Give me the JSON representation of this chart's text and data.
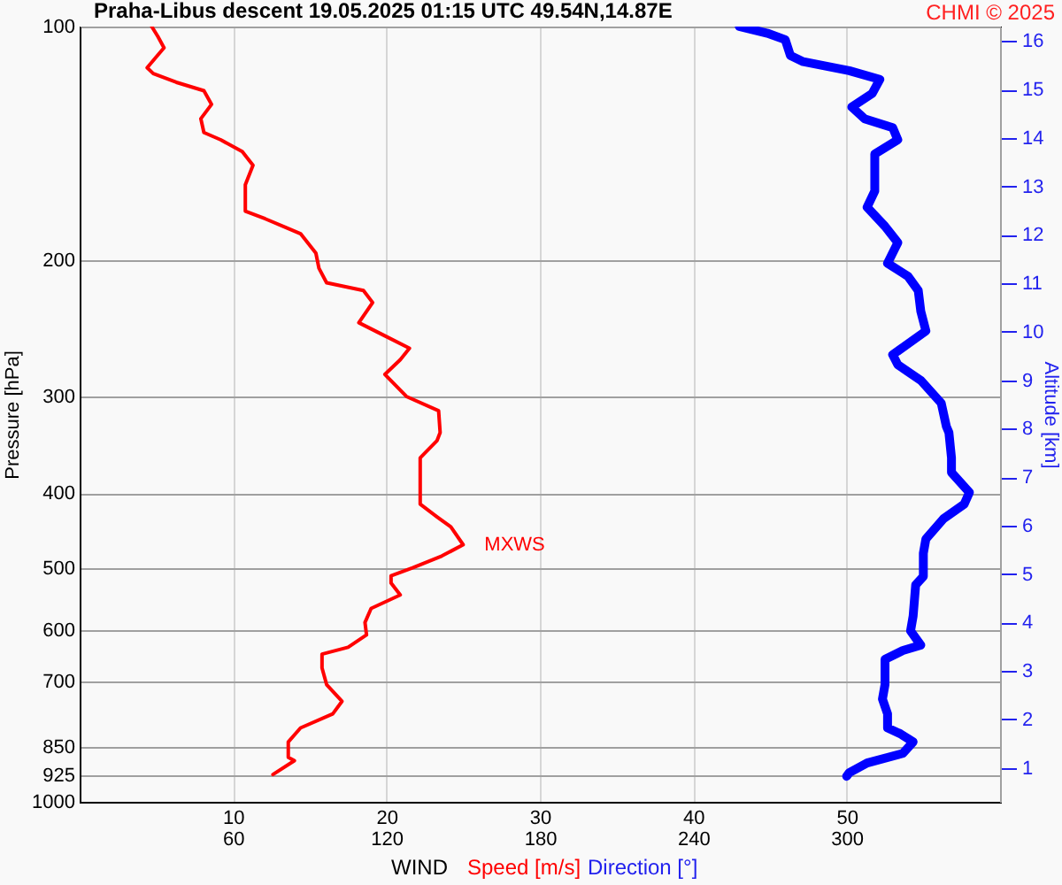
{
  "chart_data": {
    "type": "line",
    "orientation": "horizontal",
    "title": "Praha-Libus   descent   19.05.2025 01:15 UTC  49.54N,14.87E",
    "xlabel": "WIND",
    "ylabel": "Pressure [hPa]",
    "y2label": "Altitude [km]",
    "log": "y",
    "grid": true,
    "xlim": [
      0,
      60
    ],
    "xticks": [
      10,
      20,
      30,
      40,
      50
    ],
    "x2lim": [
      0,
      360
    ],
    "x2ticks": [
      60,
      120,
      180,
      240,
      300
    ],
    "ylim": [
      1000,
      100
    ],
    "yticks": [
      100,
      200,
      300,
      400,
      500,
      600,
      700,
      850,
      925,
      1000
    ],
    "y2lim": [
      0.3,
      16.3
    ],
    "y2ticks": [
      1,
      2,
      3,
      4,
      5,
      6,
      7,
      8,
      9,
      10,
      11,
      12,
      13,
      14,
      15,
      16
    ],
    "annotations": [
      "CHMI © 2025",
      {
        "text": "MXWS",
        "x": 25,
        "y": 466
      }
    ],
    "series": [
      {
        "name": "Speed [m/s]",
        "color": "#ff0000",
        "x": [
          100,
          103,
          106.5,
          110,
          113,
          115,
          118,
          121,
          126,
          131.5,
          137,
          140,
          145,
          151,
          160,
          173,
          177,
          185,
          196,
          205,
          214,
          219,
          227,
          241,
          250,
          260,
          269,
          281,
          300,
          313,
          334,
          342,
          360,
          413,
          429,
          442,
          466,
          482,
          499,
          511,
          522,
          541,
          563,
          587,
          609,
          632,
          645,
          672,
          706,
          742,
          770,
          803,
          837,
          876,
          885,
          922
        ],
        "values": [
          4.7,
          5.1,
          5.5,
          4.9,
          4.4,
          4.8,
          6.3,
          8.1,
          8.6,
          7.9,
          8.1,
          9.2,
          10.6,
          11.3,
          10.8,
          10.8,
          12.1,
          14.4,
          15.4,
          15.6,
          16.1,
          18.5,
          19.1,
          18.2,
          19.8,
          21.5,
          20.9,
          19.9,
          21.3,
          23.4,
          23.5,
          23.3,
          22.2,
          22.2,
          23.3,
          24.2,
          25.0,
          23.6,
          21.7,
          20.3,
          20.3,
          20.9,
          19.0,
          18.6,
          18.7,
          17.5,
          15.8,
          15.8,
          16.1,
          17.1,
          16.5,
          14.4,
          13.6,
          13.6,
          14.0,
          12.6
        ]
      },
      {
        "name": "Direction [°]",
        "color": "#0000ff",
        "axis": "x2",
        "x": [
          100,
          102,
          104,
          109,
          111,
          114,
          117,
          122,
          127,
          131.5,
          135,
          140,
          146,
          163,
          171,
          181,
          190,
          202,
          210,
          219,
          233,
          247,
          265,
          273,
          286,
          306,
          328,
          334,
          360,
          376,
          399,
          413,
          431,
          458,
          478,
          512,
          525,
          576,
          602,
          628,
          638,
          655,
          706,
          737,
          770,
          803,
          817,
          837,
          866,
          891,
          917,
          927
        ],
        "values": [
          258,
          269,
          276,
          278,
          283,
          301,
          313,
          310,
          302,
          307,
          318,
          320,
          311,
          311,
          308,
          315,
          320,
          316,
          324,
          328,
          329,
          331,
          318,
          320,
          329,
          337,
          339,
          340,
          341,
          341,
          348,
          346,
          338,
          331,
          330,
          330,
          327,
          326,
          325,
          329,
          322,
          315,
          315,
          314,
          316,
          316,
          321,
          326,
          322,
          308,
          301,
          300
        ]
      }
    ]
  }
}
